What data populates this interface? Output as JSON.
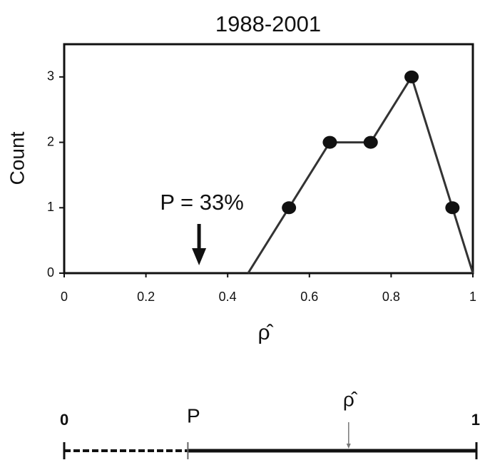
{
  "chart_data": [
    {
      "type": "line",
      "title": "1988-2001",
      "xlabel": "ρ̂",
      "ylabel": "Count",
      "x": [
        0.45,
        0.55,
        0.65,
        0.75,
        0.85,
        0.95,
        1.0
      ],
      "series": [
        {
          "color": "#333333",
          "values": [
            0,
            1,
            2,
            2,
            3,
            1,
            0
          ]
        }
      ],
      "xlim": [
        0,
        1
      ],
      "xticks": [
        0,
        0.2,
        0.4,
        0.6,
        0.8,
        1
      ],
      "ylim": [
        0,
        3.5
      ],
      "yticks": [
        0,
        1,
        2,
        3
      ],
      "annotations": [
        {
          "text": "P = 33%",
          "x": 0.33
        }
      ]
    },
    {
      "type": "number_line",
      "xlim": [
        0,
        1
      ],
      "xticks": [
        0,
        1
      ],
      "markers": [
        {
          "label": "P",
          "x": 0.3
        },
        {
          "label": "ρ̂",
          "x": 0.69
        }
      ]
    }
  ]
}
